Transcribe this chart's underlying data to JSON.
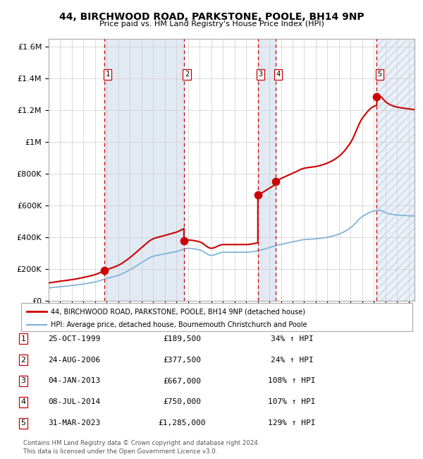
{
  "title": "44, BIRCHWOOD ROAD, PARKSTONE, POOLE, BH14 9NP",
  "subtitle": "Price paid vs. HM Land Registry's House Price Index (HPI)",
  "footer1": "Contains HM Land Registry data © Crown copyright and database right 2024.",
  "footer2": "This data is licensed under the Open Government Licence v3.0.",
  "legend_red": "44, BIRCHWOOD ROAD, PARKSTONE, POOLE, BH14 9NP (detached house)",
  "legend_blue": "HPI: Average price, detached house, Bournemouth Christchurch and Poole",
  "transactions": [
    {
      "num": 1,
      "date": "25-OCT-1999",
      "price": 189500,
      "pct": "34%",
      "year": 1999.82
    },
    {
      "num": 2,
      "date": "24-AUG-2006",
      "price": 377500,
      "pct": "24%",
      "year": 2006.65
    },
    {
      "num": 3,
      "date": "04-JAN-2013",
      "price": 667000,
      "pct": "108%",
      "year": 2013.01
    },
    {
      "num": 4,
      "date": "08-JUL-2014",
      "price": 750000,
      "pct": "107%",
      "year": 2014.52
    },
    {
      "num": 5,
      "date": "31-MAR-2023",
      "price": 1285000,
      "pct": "129%",
      "year": 2023.25
    }
  ],
  "red_color": "#cc0000",
  "blue_color": "#7aafd4",
  "bg_shaded": "#dce6f1",
  "dashed_color": "#cc0000",
  "ylim": [
    0,
    1650000
  ],
  "xlim_start": 1995.0,
  "xlim_end": 2026.5,
  "yticks": [
    0,
    200000,
    400000,
    600000,
    800000,
    1000000,
    1200000,
    1400000,
    1600000
  ],
  "ytick_labels": [
    "£0",
    "£200K",
    "£400K",
    "£600K",
    "£800K",
    "£1M",
    "£1.2M",
    "£1.4M",
    "£1.6M"
  ],
  "xticks": [
    1995,
    1996,
    1997,
    1998,
    1999,
    2000,
    2001,
    2002,
    2003,
    2004,
    2005,
    2006,
    2007,
    2008,
    2009,
    2010,
    2011,
    2012,
    2013,
    2014,
    2015,
    2016,
    2017,
    2018,
    2019,
    2020,
    2021,
    2022,
    2023,
    2024,
    2025,
    2026
  ],
  "table_rows": [
    [
      1,
      "25-OCT-1999",
      "£189,500",
      "34% ↑ HPI"
    ],
    [
      2,
      "24-AUG-2006",
      "£377,500",
      "24% ↑ HPI"
    ],
    [
      3,
      "04-JAN-2013",
      "£667,000",
      "108% ↑ HPI"
    ],
    [
      4,
      "08-JUL-2014",
      "£750,000",
      "107% ↑ HPI"
    ],
    [
      5,
      "31-MAR-2023",
      "£1,285,000",
      "129% ↑ HPI"
    ]
  ]
}
